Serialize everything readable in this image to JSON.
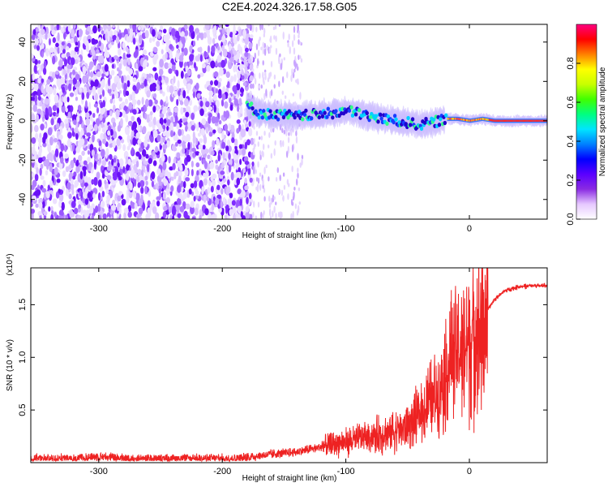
{
  "title": "C2E4.2024.326.17.58.G05",
  "chart_data": [
    {
      "type": "heatmap",
      "xlabel": "Height of straight line (km)",
      "ylabel": "Frequency (Hz)",
      "xlim": [
        -355,
        63
      ],
      "ylim": [
        -50,
        49
      ],
      "x_ticks": [
        -300,
        -200,
        -100,
        0
      ],
      "y_ticks": [
        -40,
        -20,
        0,
        20,
        40
      ],
      "noise_region_x": [
        -355,
        -175
      ],
      "sparse_region_x": [
        -175,
        -135
      ],
      "signal_trace": {
        "x": [
          -180,
          -170,
          -160,
          -150,
          -140,
          -130,
          -120,
          -110,
          -100,
          -90,
          -80,
          -70,
          -60,
          -50,
          -40,
          -30,
          -20,
          -10,
          0,
          10,
          20,
          30,
          40,
          50,
          60
        ],
        "y": [
          8,
          4,
          3,
          3,
          2,
          3,
          3,
          4,
          5,
          4,
          2,
          1,
          0,
          -1,
          -2,
          -1,
          1,
          1,
          0,
          1,
          0,
          0,
          0,
          0,
          0
        ]
      },
      "colorbar": {
        "label": "Normalized spectral amplitude",
        "range": [
          0,
          1
        ],
        "ticks": [
          0.0,
          0.2,
          0.4,
          0.6,
          0.8
        ],
        "colors": [
          "#ffffff",
          "#e6c8ff",
          "#8a2be2",
          "#5a00ff",
          "#0000ff",
          "#0080ff",
          "#00e5ff",
          "#00ff80",
          "#40ff00",
          "#c8ff00",
          "#ffff00",
          "#ff8000",
          "#ff0000",
          "#ff0080"
        ]
      }
    },
    {
      "type": "line",
      "xlabel": "Height of straight line (km)",
      "ylabel": "SNR (10 * v/v)",
      "y_multiplier": "(x10⁴)",
      "xlim": [
        -355,
        63
      ],
      "ylim": [
        0,
        18500
      ],
      "x_ticks": [
        -300,
        -200,
        -100,
        0
      ],
      "y_ticks": [
        5000,
        10000,
        15000
      ],
      "y_tick_labels": [
        "0.5",
        "1.0",
        "1.5"
      ],
      "color": "#ee2222",
      "series": [
        {
          "x": [
            -355,
            -320,
            -300,
            -280,
            -250,
            -220,
            -200,
            -180,
            -160,
            -140,
            -120,
            -100,
            -80,
            -60,
            -50,
            -40,
            -30,
            -25,
            -20,
            -15,
            -10,
            -5,
            0,
            5,
            10,
            15,
            20,
            25,
            30,
            40,
            50,
            63
          ],
          "y": [
            400,
            400,
            600,
            400,
            400,
            400,
            400,
            500,
            800,
            1000,
            1500,
            2000,
            2500,
            3000,
            3500,
            4500,
            6000,
            7000,
            8500,
            9500,
            10500,
            11000,
            11500,
            12500,
            13500,
            14500,
            15500,
            16000,
            16400,
            16700,
            16800,
            16800
          ]
        }
      ]
    }
  ]
}
